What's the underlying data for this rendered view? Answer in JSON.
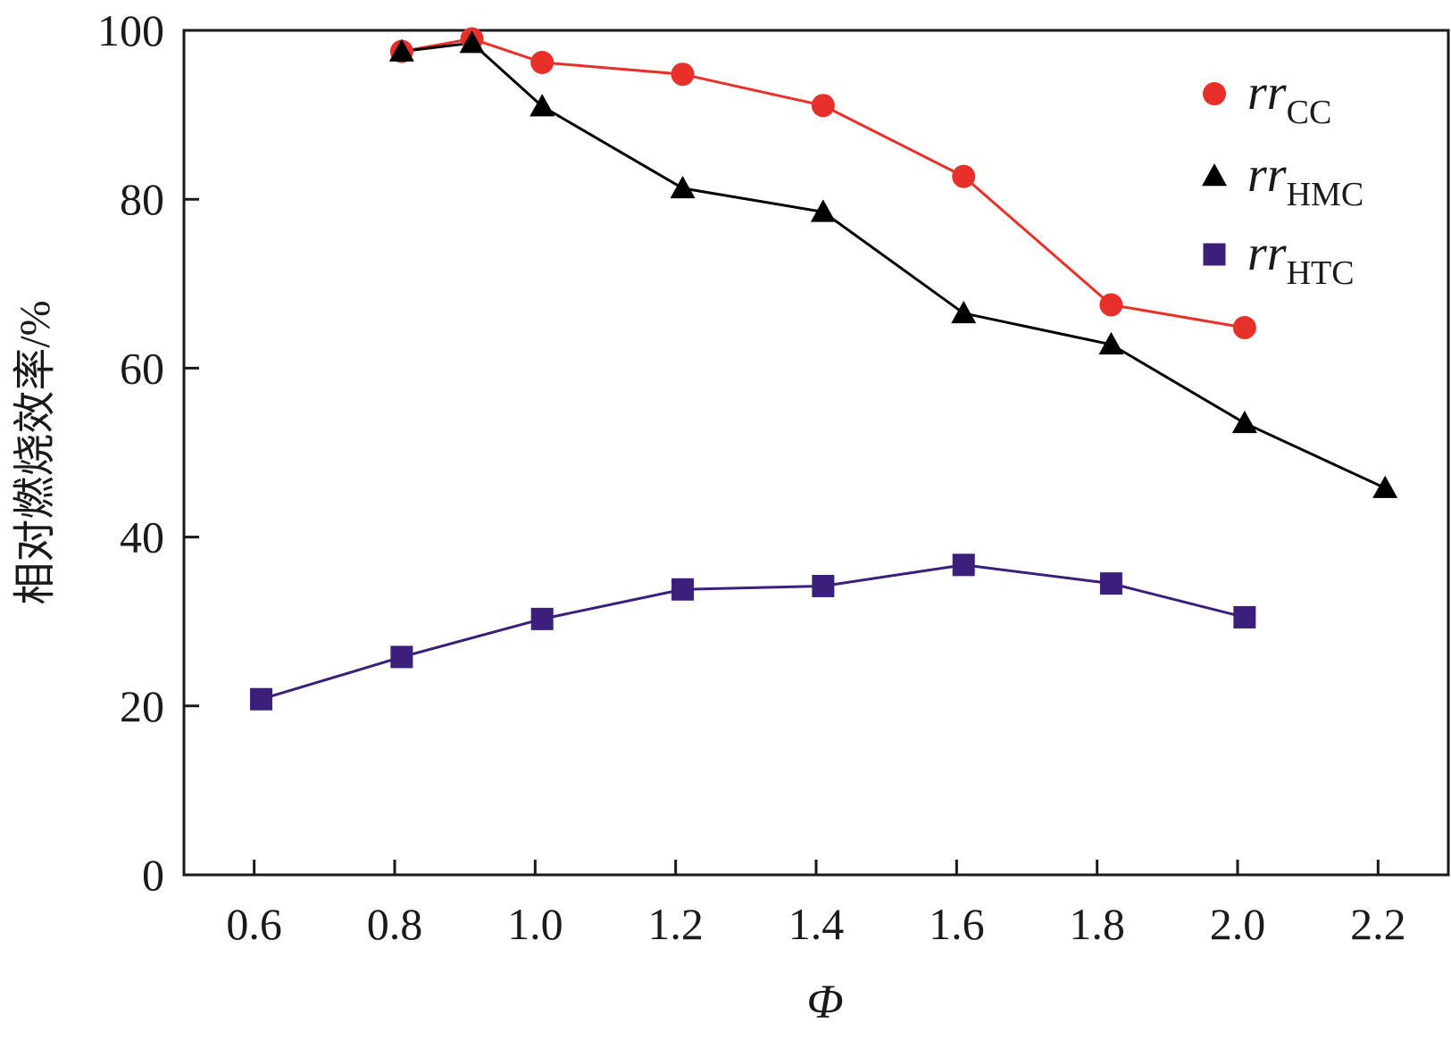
{
  "chart_data": {
    "type": "line",
    "title": "",
    "xlabel": "Φ",
    "ylabel": "相对燃烧效率/%",
    "xlim": [
      0.5,
      2.3
    ],
    "ylim": [
      0,
      100
    ],
    "x_ticks": [
      "0.6",
      "0.8",
      "1.0",
      "1.2",
      "1.4",
      "1.6",
      "1.8",
      "2.0",
      "2.2"
    ],
    "y_ticks": [
      "0",
      "20",
      "40",
      "60",
      "80",
      "100"
    ],
    "legend_position": "top-right",
    "series": [
      {
        "name": "rr_CC",
        "label_main": "rr",
        "label_sub": "CC",
        "marker": "circle",
        "color": "#e8302a",
        "x": [
          0.81,
          0.91,
          1.01,
          1.21,
          1.41,
          1.61,
          1.82,
          2.01
        ],
        "values": [
          97.5,
          99,
          96.2,
          94.8,
          91.1,
          82.7,
          67.5,
          64.8
        ]
      },
      {
        "name": "rr_HMC",
        "label_main": "rr",
        "label_sub": "HMC",
        "marker": "triangle",
        "color": "#000000",
        "x": [
          0.81,
          0.91,
          1.01,
          1.21,
          1.41,
          1.61,
          1.82,
          2.01,
          2.21
        ],
        "values": [
          97.5,
          98.5,
          91,
          81.3,
          78.5,
          66.5,
          62.8,
          53.5,
          45.8
        ]
      },
      {
        "name": "rr_HTC",
        "label_main": "rr",
        "label_sub": "HTC",
        "marker": "square",
        "color": "#3b1f7a",
        "x": [
          0.61,
          0.81,
          1.01,
          1.21,
          1.41,
          1.61,
          1.82,
          2.01
        ],
        "values": [
          20.8,
          25.8,
          30.3,
          33.8,
          34.2,
          36.7,
          34.5,
          30.5
        ]
      }
    ]
  }
}
